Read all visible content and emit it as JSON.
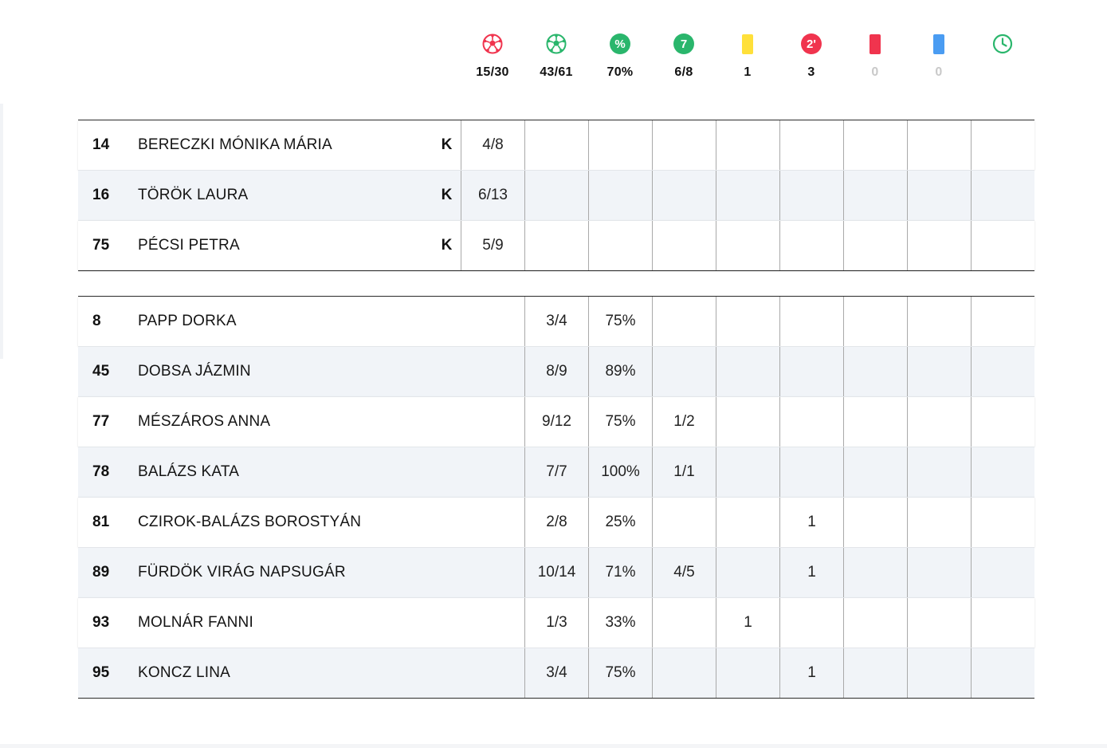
{
  "summary": [
    {
      "icon": "goalkeeper-ball-icon",
      "color": "#f0344e",
      "value": "15/30",
      "muted": false
    },
    {
      "icon": "field-ball-icon",
      "color": "#2ab66c",
      "value": "43/61",
      "muted": false
    },
    {
      "icon": "percent-icon",
      "color": "#2ab66c",
      "glyph": "%",
      "value": "70%",
      "muted": false
    },
    {
      "icon": "seven-meter-icon",
      "color": "#2ab66c",
      "glyph": "7",
      "value": "6/8",
      "muted": false
    },
    {
      "icon": "yellow-card-icon",
      "color": "#ffe03a",
      "value": "1",
      "muted": false
    },
    {
      "icon": "two-minute-icon",
      "color": "#f0344e",
      "glyph": "2'",
      "value": "3",
      "muted": false
    },
    {
      "icon": "red-card-icon",
      "color": "#f0344e",
      "value": "0",
      "muted": true
    },
    {
      "icon": "blue-card-icon",
      "color": "#4a9cf2",
      "value": "0",
      "muted": true
    },
    {
      "icon": "clock-icon",
      "color": "#2ab66c",
      "value": "",
      "muted": false
    }
  ],
  "goalkeepers": [
    {
      "number": "14",
      "name": "BERECZKI MÓNIKA MÁRIA",
      "role": "K",
      "saves": "4/8"
    },
    {
      "number": "16",
      "name": "TÖRÖK LAURA",
      "role": "K",
      "saves": "6/13"
    },
    {
      "number": "75",
      "name": "PÉCSI PETRA",
      "role": "K",
      "saves": "5/9"
    }
  ],
  "players": [
    {
      "number": "8",
      "name": "PAPP DORKA",
      "goals": "3/4",
      "pct": "75%",
      "seven": "",
      "yellow": "",
      "two_min": "",
      "red": "",
      "blue": "",
      "time": ""
    },
    {
      "number": "45",
      "name": "DOBSA JÁZMIN",
      "goals": "8/9",
      "pct": "89%",
      "seven": "",
      "yellow": "",
      "two_min": "",
      "red": "",
      "blue": "",
      "time": ""
    },
    {
      "number": "77",
      "name": "MÉSZÁROS ANNA",
      "goals": "9/12",
      "pct": "75%",
      "seven": "1/2",
      "yellow": "",
      "two_min": "",
      "red": "",
      "blue": "",
      "time": ""
    },
    {
      "number": "78",
      "name": "BALÁZS KATA",
      "goals": "7/7",
      "pct": "100%",
      "seven": "1/1",
      "yellow": "",
      "two_min": "",
      "red": "",
      "blue": "",
      "time": ""
    },
    {
      "number": "81",
      "name": "CZIROK-BALÁZS BOROSTYÁN",
      "goals": "2/8",
      "pct": "25%",
      "seven": "",
      "yellow": "",
      "two_min": "1",
      "red": "",
      "blue": "",
      "time": ""
    },
    {
      "number": "89",
      "name": "FÜRDÖK VIRÁG NAPSUGÁR",
      "goals": "10/14",
      "pct": "71%",
      "seven": "4/5",
      "yellow": "",
      "two_min": "1",
      "red": "",
      "blue": "",
      "time": ""
    },
    {
      "number": "93",
      "name": "MOLNÁR FANNI",
      "goals": "1/3",
      "pct": "33%",
      "seven": "",
      "yellow": "1",
      "two_min": "",
      "red": "",
      "blue": "",
      "time": ""
    },
    {
      "number": "95",
      "name": "KONCZ LINA",
      "goals": "3/4",
      "pct": "75%",
      "seven": "",
      "yellow": "",
      "two_min": "1",
      "red": "",
      "blue": "",
      "time": ""
    }
  ]
}
